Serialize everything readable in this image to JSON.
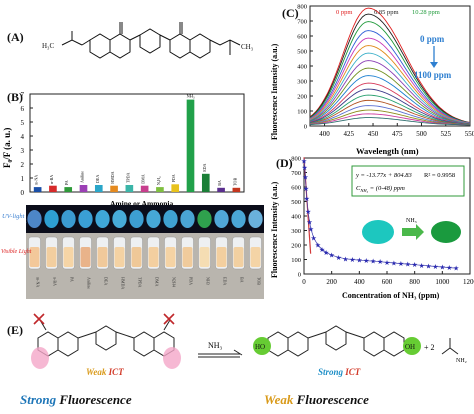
{
  "panels": {
    "a": "(A)",
    "b": "(B)",
    "c": "(C)",
    "d": "(D)",
    "e": "(E)"
  },
  "structure_a": {
    "left_group": "H₃C",
    "right_group": "CH₃"
  },
  "chart_b": {
    "type": "bar",
    "ylabel": "F₀/F (a. u.)",
    "xlabel": "Amine or Ammonia",
    "ylim": [
      0,
      7
    ],
    "yticks": [
      "0",
      "1",
      "2",
      "3",
      "4",
      "5",
      "6",
      "7"
    ],
    "categories": [
      "m-NA",
      "n-BA",
      "PA",
      "Aniline",
      "DEA",
      "HMDA",
      "TPDA",
      "DMA",
      "N2H4",
      "PDA",
      "NH3",
      "EDA",
      "BA",
      "TOB"
    ],
    "values": [
      0.35,
      0.45,
      0.35,
      0.5,
      0.5,
      0.45,
      0.5,
      0.45,
      0.35,
      0.55,
      6.6,
      1.3,
      0.3,
      0.3
    ],
    "colors": [
      "#1a4fa8",
      "#d62a2a",
      "#2f9a3a",
      "#9b3fb5",
      "#2aa6c9",
      "#e58a1f",
      "#3bb5a8",
      "#c73e8d",
      "#7fbf3f",
      "#e8c21c",
      "#21a14a",
      "#1a7f37",
      "#5a2e8e",
      "#c4361e"
    ],
    "bar_labels": [
      "m-NA",
      "n-BA",
      "PA",
      "Aniline",
      "DEA",
      "HMDA",
      "TPDA",
      "DMA",
      "N₂H₄",
      "PDA",
      "NH₃",
      "EDA",
      "BA",
      "TOB"
    ]
  },
  "photos": {
    "uv_label": "UV-light",
    "visible_label": "Visible Light",
    "uv_colors": [
      "#4d86c7",
      "#2e9fd2",
      "#3b9bd1",
      "#3a9fd5",
      "#3fa7d8",
      "#47abd8",
      "#3d9fd2",
      "#46a8d6",
      "#3fa2d2",
      "#4aa5d4",
      "#2fa14d",
      "#50a7d8",
      "#4aa6d6",
      "#6ab1dc"
    ],
    "visible_colors": [
      "#f3c89a",
      "#f2ce9f",
      "#f6d5a6",
      "#e9b38a",
      "#f0c99b",
      "#f4d2a3",
      "#efc898",
      "#f3cfa0",
      "#f5d3a4",
      "#f0cb9c",
      "#f5ddb3",
      "#f3cf9f",
      "#f2d0a1",
      "#f4d4a6"
    ],
    "tube_labels": [
      "m-NA",
      "n-BA",
      "PA",
      "Aniline",
      "DEA",
      "HMDA",
      "TPDA",
      "DMA",
      "N2H4",
      "PDA",
      "NH3",
      "EDA",
      "BA",
      "TOB"
    ]
  },
  "chart_c": {
    "type": "line",
    "ylabel": "Fluorescence Intensity (a.u.)",
    "xlabel": "Wavelength (nm)",
    "xlim": [
      385,
      550
    ],
    "ylim": [
      0,
      800
    ],
    "xticks": [
      400,
      425,
      450,
      475,
      500,
      525,
      550
    ],
    "yticks": [
      0,
      100,
      200,
      300,
      400,
      500,
      600,
      700,
      800
    ],
    "legend": [
      "0 ppm",
      "6.85 ppm",
      "10.28 ppm"
    ],
    "peak_x": 445,
    "peak_values": [
      780,
      740,
      690,
      630,
      580,
      530,
      480,
      430,
      380,
      330,
      280,
      240,
      200,
      165,
      130,
      100,
      75,
      50
    ],
    "colors": [
      "#e02020",
      "#1e1e1e",
      "#1f9a3a",
      "#2e5fd6",
      "#c93ab8",
      "#e08a18",
      "#3bb0c9",
      "#8a3fb5",
      "#6f8f1f",
      "#1b7fd0",
      "#d63a5a",
      "#3c3c8a",
      "#27a06e",
      "#b0501f",
      "#5a6fd0",
      "#8c8c1a",
      "#cc3d9e",
      "#2f6f6f"
    ],
    "annotation_top": "0 ppm",
    "annotation_bottom": "1100 ppm"
  },
  "chart_d": {
    "type": "scatter",
    "ylabel": "Fluorescence Intensity (a.u.)",
    "xlabel": "Concentration of NH₃ (ppm)",
    "xlim": [
      0,
      1200
    ],
    "ylim": [
      0,
      800
    ],
    "xticks": [
      0,
      200,
      400,
      600,
      800,
      1000,
      1200
    ],
    "yticks": [
      0,
      100,
      200,
      300,
      400,
      500,
      600,
      700,
      800
    ],
    "x": [
      0,
      5,
      10,
      15,
      20,
      30,
      40,
      50,
      70,
      100,
      130,
      160,
      200,
      250,
      300,
      350,
      400,
      450,
      500,
      550,
      600,
      650,
      700,
      750,
      800,
      850,
      900,
      950,
      1000,
      1050,
      1100
    ],
    "y": [
      780,
      735,
      670,
      590,
      520,
      430,
      360,
      310,
      250,
      200,
      170,
      150,
      130,
      115,
      105,
      100,
      95,
      92,
      88,
      85,
      80,
      76,
      72,
      68,
      64,
      60,
      56,
      52,
      48,
      44,
      40
    ],
    "fit_x": [
      0,
      48
    ],
    "fit_y": [
      805,
      140
    ],
    "equation": "y = -13.77x + 804.83",
    "r2": "R² = 0.9958",
    "range_label": "C",
    "range_sub": "NH₃",
    "range_value": " = (0-48) ppm",
    "inset_label": "NH₃"
  },
  "panel_e": {
    "reagent": "NH₃",
    "weak_label": "Weak",
    "ict": "ICT",
    "strong_label": "Strong",
    "ho": "HO",
    "oh": "OH",
    "plus_two": "+ 2",
    "nh2": "NH₂",
    "left_caption_1": "Strong",
    "left_caption_2": "Fluorescence",
    "right_caption_1": "Weak",
    "right_caption_2": "Fluorescence"
  }
}
